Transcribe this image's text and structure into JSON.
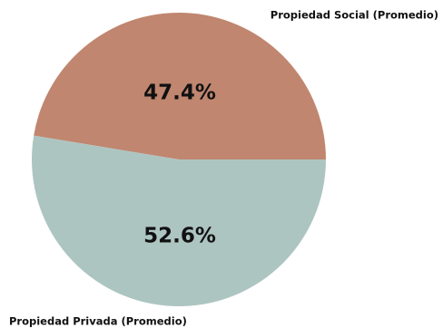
{
  "chart_data": {
    "type": "pie",
    "title": "",
    "slices": [
      {
        "label": "Propiedad Social (Promedio)",
        "value": 47.4,
        "value_label": "47.4%",
        "color": "#c0866f"
      },
      {
        "label": "Propiedad Privada (Promedio)",
        "value": 52.6,
        "value_label": "52.6%",
        "color": "#adc5c1"
      }
    ],
    "start_angle": "east",
    "direction": "counterclockwise"
  }
}
